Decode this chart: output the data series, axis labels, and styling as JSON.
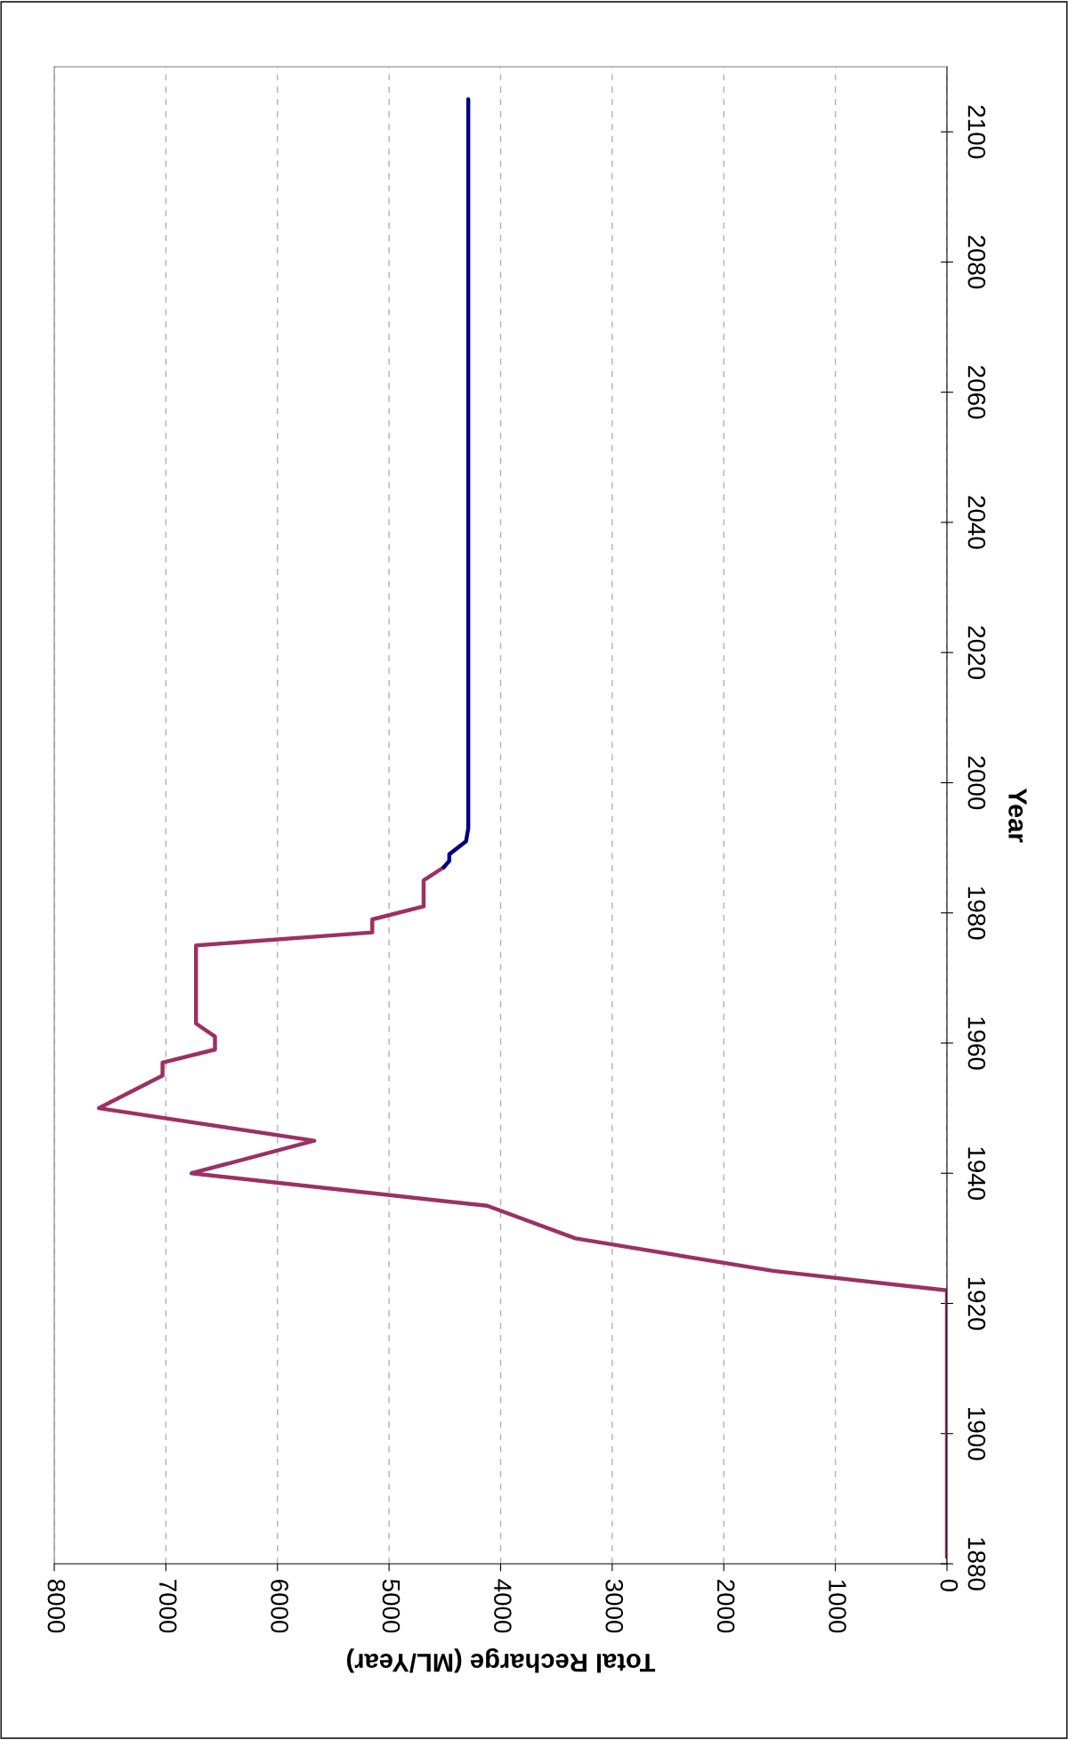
{
  "chart_data": {
    "type": "line",
    "xlabel": "Total Recharge (ML/Year)",
    "ylabel": "Year",
    "xlim": [
      8000,
      0
    ],
    "xticks": [
      8000,
      7000,
      6000,
      5000,
      4000,
      3000,
      2000,
      1000,
      0
    ],
    "ylim": [
      1880,
      2110
    ],
    "yticks": [
      1880,
      1900,
      1920,
      1940,
      1960,
      1980,
      2000,
      2020,
      2040,
      2060,
      2080,
      2100
    ],
    "grid": "x",
    "marker": "none",
    "line_style": "solid",
    "series": [
      {
        "color": "#9b3163",
        "x": [
          0,
          0,
          1560,
          3330,
          4120,
          6770,
          5670,
          7600,
          7030,
          7030,
          6560,
          6560,
          6730,
          6730,
          5150,
          5150,
          4690,
          4690,
          4510
        ],
        "values": [
          1881,
          1922,
          1925,
          1930,
          1935,
          1940,
          1945,
          1950,
          1955,
          1957,
          1959,
          1961,
          1963,
          1975,
          1977,
          1979,
          1981,
          1985,
          1987
        ]
      },
      {
        "color": "#000080",
        "x": [
          4510,
          4460,
          4460,
          4310,
          4290,
          4290
        ],
        "values": [
          1987,
          1988,
          1989,
          1991,
          1993,
          2105
        ]
      }
    ]
  }
}
